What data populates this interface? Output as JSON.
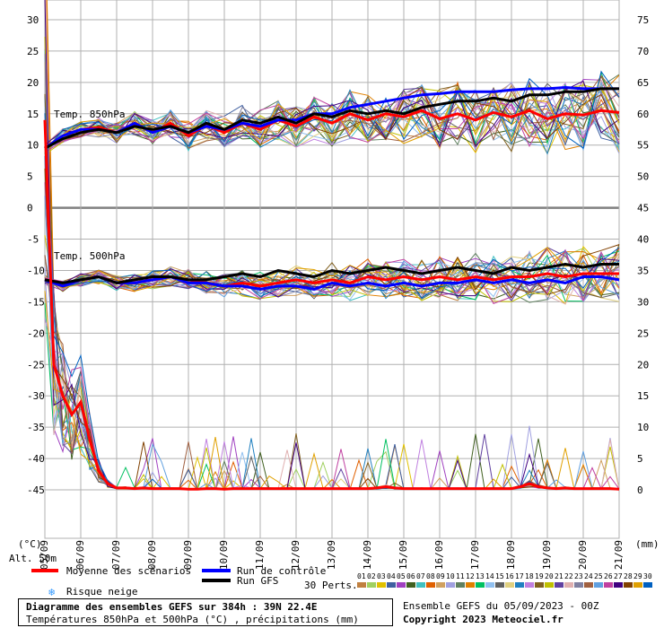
{
  "chart_data": {
    "type": "line",
    "title": "Diagramme des ensembles GEFS sur 384h : 39N 22.4E",
    "subtitle": "Températures 850hPa et 500hPa (°C) , précipitations (mm)",
    "left_axis": {
      "unit": "(°C)",
      "ylim": [
        -45,
        30
      ],
      "ticks": [
        30,
        25,
        20,
        15,
        10,
        5,
        0,
        -5,
        -10,
        -15,
        -20,
        -25,
        -30,
        -35,
        -40,
        -45
      ]
    },
    "right_axis": {
      "unit": "(mm)",
      "ylim": [
        0,
        75
      ],
      "ticks": [
        75,
        70,
        65,
        60,
        55,
        50,
        45,
        40,
        35,
        30,
        25,
        20,
        15,
        10,
        5,
        0
      ]
    },
    "x_ticks": [
      "05/09",
      "06/09",
      "07/09",
      "08/09",
      "09/09",
      "10/09",
      "11/09",
      "12/09",
      "13/09",
      "14/09",
      "15/09",
      "16/09",
      "17/09",
      "18/09",
      "19/09",
      "20/09",
      "21/09"
    ],
    "x_range_days": [
      0,
      16
    ],
    "alt_label": "Alt. 50m",
    "annotations": {
      "t850": "Temp. 850hPa",
      "t500": "Temp. 500hPa"
    },
    "legend": {
      "mean": "Moyenne des scénarios",
      "control": "Run de contrôle",
      "gfs": "Run GFS",
      "snow": "Risque neige",
      "perts": "30 Perts."
    },
    "colors": {
      "mean": "#ff0000",
      "control": "#0000ff",
      "gfs": "#000000",
      "grid": "#b0b0b0",
      "zero": "#808080"
    },
    "series": [
      {
        "name": "Moyenne des scénarios",
        "kind": "t850",
        "values": [
          9.5,
          11.5,
          12.5,
          12.8,
          12.0,
          13.5,
          12.0,
          13.5,
          11.5,
          13.2,
          12.0,
          13.5,
          12.5,
          14.0,
          13.0,
          14.5,
          13.5,
          15.0,
          14.0,
          15.0,
          14.5,
          15.5,
          14.2,
          15.0,
          14.0,
          15.2,
          14.5,
          15.5,
          14.2,
          15.0,
          14.8,
          15.5,
          15.2
        ]
      },
      {
        "name": "Run de contrôle",
        "kind": "t850",
        "values": [
          9.5,
          11.5,
          12.5,
          12.5,
          12.0,
          13.5,
          12.0,
          13.0,
          12.0,
          13.0,
          12.5,
          13.5,
          13.0,
          14.0,
          14.0,
          15.0,
          15.0,
          16.0,
          16.5,
          17.0,
          17.5,
          18.0,
          18.2,
          18.5,
          18.5,
          18.5,
          18.8,
          19.0,
          19.0,
          19.2,
          19.0,
          19.0,
          19.0
        ]
      },
      {
        "name": "Run GFS",
        "kind": "t850",
        "values": [
          9.5,
          11.0,
          12.0,
          12.5,
          12.0,
          13.0,
          12.5,
          13.0,
          12.0,
          13.5,
          12.5,
          14.0,
          13.5,
          14.5,
          13.5,
          15.0,
          14.5,
          15.5,
          15.0,
          15.5,
          15.0,
          16.0,
          16.5,
          17.0,
          17.0,
          17.5,
          17.0,
          18.0,
          18.0,
          18.5,
          18.5,
          19.0,
          19.0
        ]
      },
      {
        "name": "Moyenne des scénarios",
        "kind": "t500",
        "values": [
          -11.5,
          -12.5,
          -11.5,
          -11.0,
          -12.0,
          -12.0,
          -11.5,
          -11.0,
          -11.5,
          -12.0,
          -12.5,
          -12.0,
          -12.5,
          -12.0,
          -11.5,
          -12.0,
          -11.5,
          -12.0,
          -11.0,
          -11.5,
          -11.0,
          -11.5,
          -11.0,
          -11.5,
          -11.0,
          -11.5,
          -11.0,
          -11.0,
          -10.5,
          -11.0,
          -10.5,
          -10.5,
          -10.5
        ]
      },
      {
        "name": "Run de contrôle",
        "kind": "t500",
        "values": [
          -11.5,
          -12.5,
          -11.5,
          -11.0,
          -12.0,
          -12.0,
          -11.5,
          -11.0,
          -12.0,
          -12.0,
          -12.5,
          -12.5,
          -13.0,
          -12.5,
          -12.5,
          -13.0,
          -12.0,
          -12.5,
          -12.0,
          -12.5,
          -12.0,
          -12.5,
          -12.0,
          -12.0,
          -11.5,
          -12.0,
          -11.5,
          -12.0,
          -11.5,
          -12.0,
          -11.0,
          -11.0,
          -11.5
        ]
      },
      {
        "name": "Run GFS",
        "kind": "t500",
        "values": [
          -11.5,
          -12.0,
          -11.5,
          -11.0,
          -12.0,
          -11.5,
          -11.0,
          -11.0,
          -11.5,
          -11.5,
          -11.0,
          -10.5,
          -11.0,
          -10.0,
          -10.5,
          -11.0,
          -10.0,
          -10.5,
          -10.0,
          -9.5,
          -10.0,
          -10.5,
          -10.0,
          -9.5,
          -10.0,
          -10.5,
          -9.5,
          -10.0,
          -9.5,
          -9.0,
          -9.5,
          -9.0,
          -9.0
        ]
      },
      {
        "name": "Moyenne des scénarios",
        "kind": "precip",
        "values": [
          59,
          20,
          15,
          12,
          14,
          8,
          3,
          1,
          0.3,
          0.3,
          0.2,
          0.3,
          0.2,
          0.2,
          0.2,
          0.2,
          0.1,
          0.1,
          0.2,
          0.2,
          0.1,
          0.2,
          0.2,
          0.2,
          0.2,
          0.2,
          0.2,
          0.2,
          0.2,
          0.2,
          0.2,
          0.2,
          0.2,
          0.2,
          0.2,
          0.2,
          0.2,
          0.3,
          0.5,
          0.3,
          0.2,
          0.2,
          0.2,
          0.2,
          0.2,
          0.2,
          0.2,
          0.2,
          0.2,
          0.2,
          0.2,
          0.2,
          0.2,
          0.5,
          1.0,
          0.5,
          0.3,
          0.2,
          0.3,
          0.2,
          0.2,
          0.2,
          0.2,
          0.2,
          0.1
        ]
      }
    ],
    "perturbations": {
      "count": 30,
      "labels": [
        "01",
        "02",
        "03",
        "04",
        "05",
        "06",
        "07",
        "08",
        "09",
        "10",
        "11",
        "12",
        "13",
        "14",
        "15",
        "16",
        "17",
        "18",
        "19",
        "20",
        "21",
        "22",
        "23",
        "24",
        "25",
        "26",
        "27",
        "28",
        "29",
        "30"
      ],
      "colors": [
        "#c08040",
        "#a0d060",
        "#e0c000",
        "#4060a0",
        "#a040c0",
        "#406020",
        "#40c0c0",
        "#e06000",
        "#d0a060",
        "#a0a0e0",
        "#608060",
        "#e08000",
        "#00c060",
        "#90c0f0",
        "#606060",
        "#e0d080",
        "#2080c0",
        "#c080e0",
        "#806020",
        "#c0c000",
        "#6040a0",
        "#e0b0b0",
        "#8080a0",
        "#a06040",
        "#60a0e0",
        "#c040a0",
        "#400080",
        "#804000",
        "#e0a000",
        "#0060c0"
      ]
    }
  },
  "footer": {
    "ensemble": "Ensemble GEFS du 05/09/2023 - 00Z",
    "copyright": "Copyright 2023 Meteociel.fr"
  }
}
